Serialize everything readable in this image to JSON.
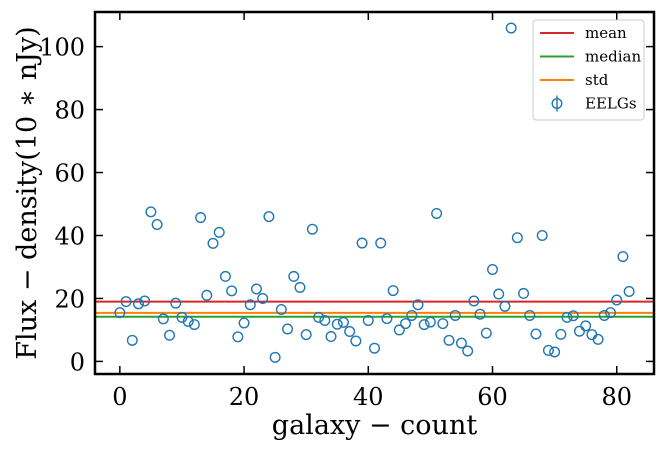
{
  "chart_data": {
    "type": "scatter",
    "xlabel": "galaxy − count",
    "ylabel": "Flux − density(10 ∗ nJy)",
    "xlim": [
      -4,
      86
    ],
    "ylim": [
      -4,
      111
    ],
    "xticks": [
      0,
      20,
      40,
      60,
      80
    ],
    "yticks": [
      0,
      20,
      40,
      60,
      80,
      100
    ],
    "grid": false,
    "legend_position": "top-right",
    "hlines": [
      {
        "name": "mean",
        "value": 19.0,
        "color": "#d62728"
      },
      {
        "name": "median",
        "value": 14.2,
        "color": "#2ca02c"
      },
      {
        "name": "std",
        "value": 15.4,
        "color": "#ff7f0e"
      }
    ],
    "series": [
      {
        "name": "EELGs",
        "color": "#1f77b4",
        "x": [
          0,
          1,
          2,
          3,
          4,
          5,
          6,
          7,
          8,
          9,
          10,
          11,
          12,
          13,
          14,
          15,
          16,
          17,
          18,
          19,
          20,
          21,
          22,
          23,
          24,
          25,
          26,
          27,
          28,
          29,
          30,
          31,
          32,
          33,
          34,
          35,
          36,
          37,
          38,
          39,
          40,
          41,
          42,
          43,
          44,
          45,
          46,
          47,
          48,
          49,
          50,
          51,
          52,
          53,
          54,
          55,
          56,
          57,
          58,
          59,
          60,
          61,
          62,
          63,
          64,
          65,
          66,
          67,
          68,
          69,
          70,
          71,
          72,
          73,
          74,
          75,
          76,
          77,
          78,
          79,
          80,
          81,
          82
        ],
        "y": [
          15.5,
          19,
          6.7,
          18.3,
          19.2,
          47.5,
          43.5,
          13.5,
          8.3,
          18.5,
          14,
          12.7,
          11.7,
          45.7,
          21,
          37.5,
          41,
          27,
          22.4,
          7.8,
          12.2,
          18,
          23,
          20,
          46,
          1.3,
          16.5,
          10.3,
          27,
          23.5,
          8.5,
          42,
          14,
          13,
          7.9,
          11.8,
          12.4,
          9.5,
          6.5,
          37.6,
          13,
          4.2,
          37.6,
          13.6,
          22.5,
          10,
          12,
          14.6,
          18,
          11.7,
          12.5,
          47,
          12,
          6.7,
          14.6,
          5.8,
          3.3,
          19.2,
          15,
          9,
          29.2,
          21.4,
          17.5,
          105.9,
          39.3,
          21.6,
          14.6,
          8.7,
          40,
          3.5,
          3,
          8.6,
          14,
          14.5,
          9.6,
          11.3,
          8.5,
          7,
          14.6,
          15.5,
          19.5,
          33.3,
          22.2
        ]
      }
    ]
  }
}
